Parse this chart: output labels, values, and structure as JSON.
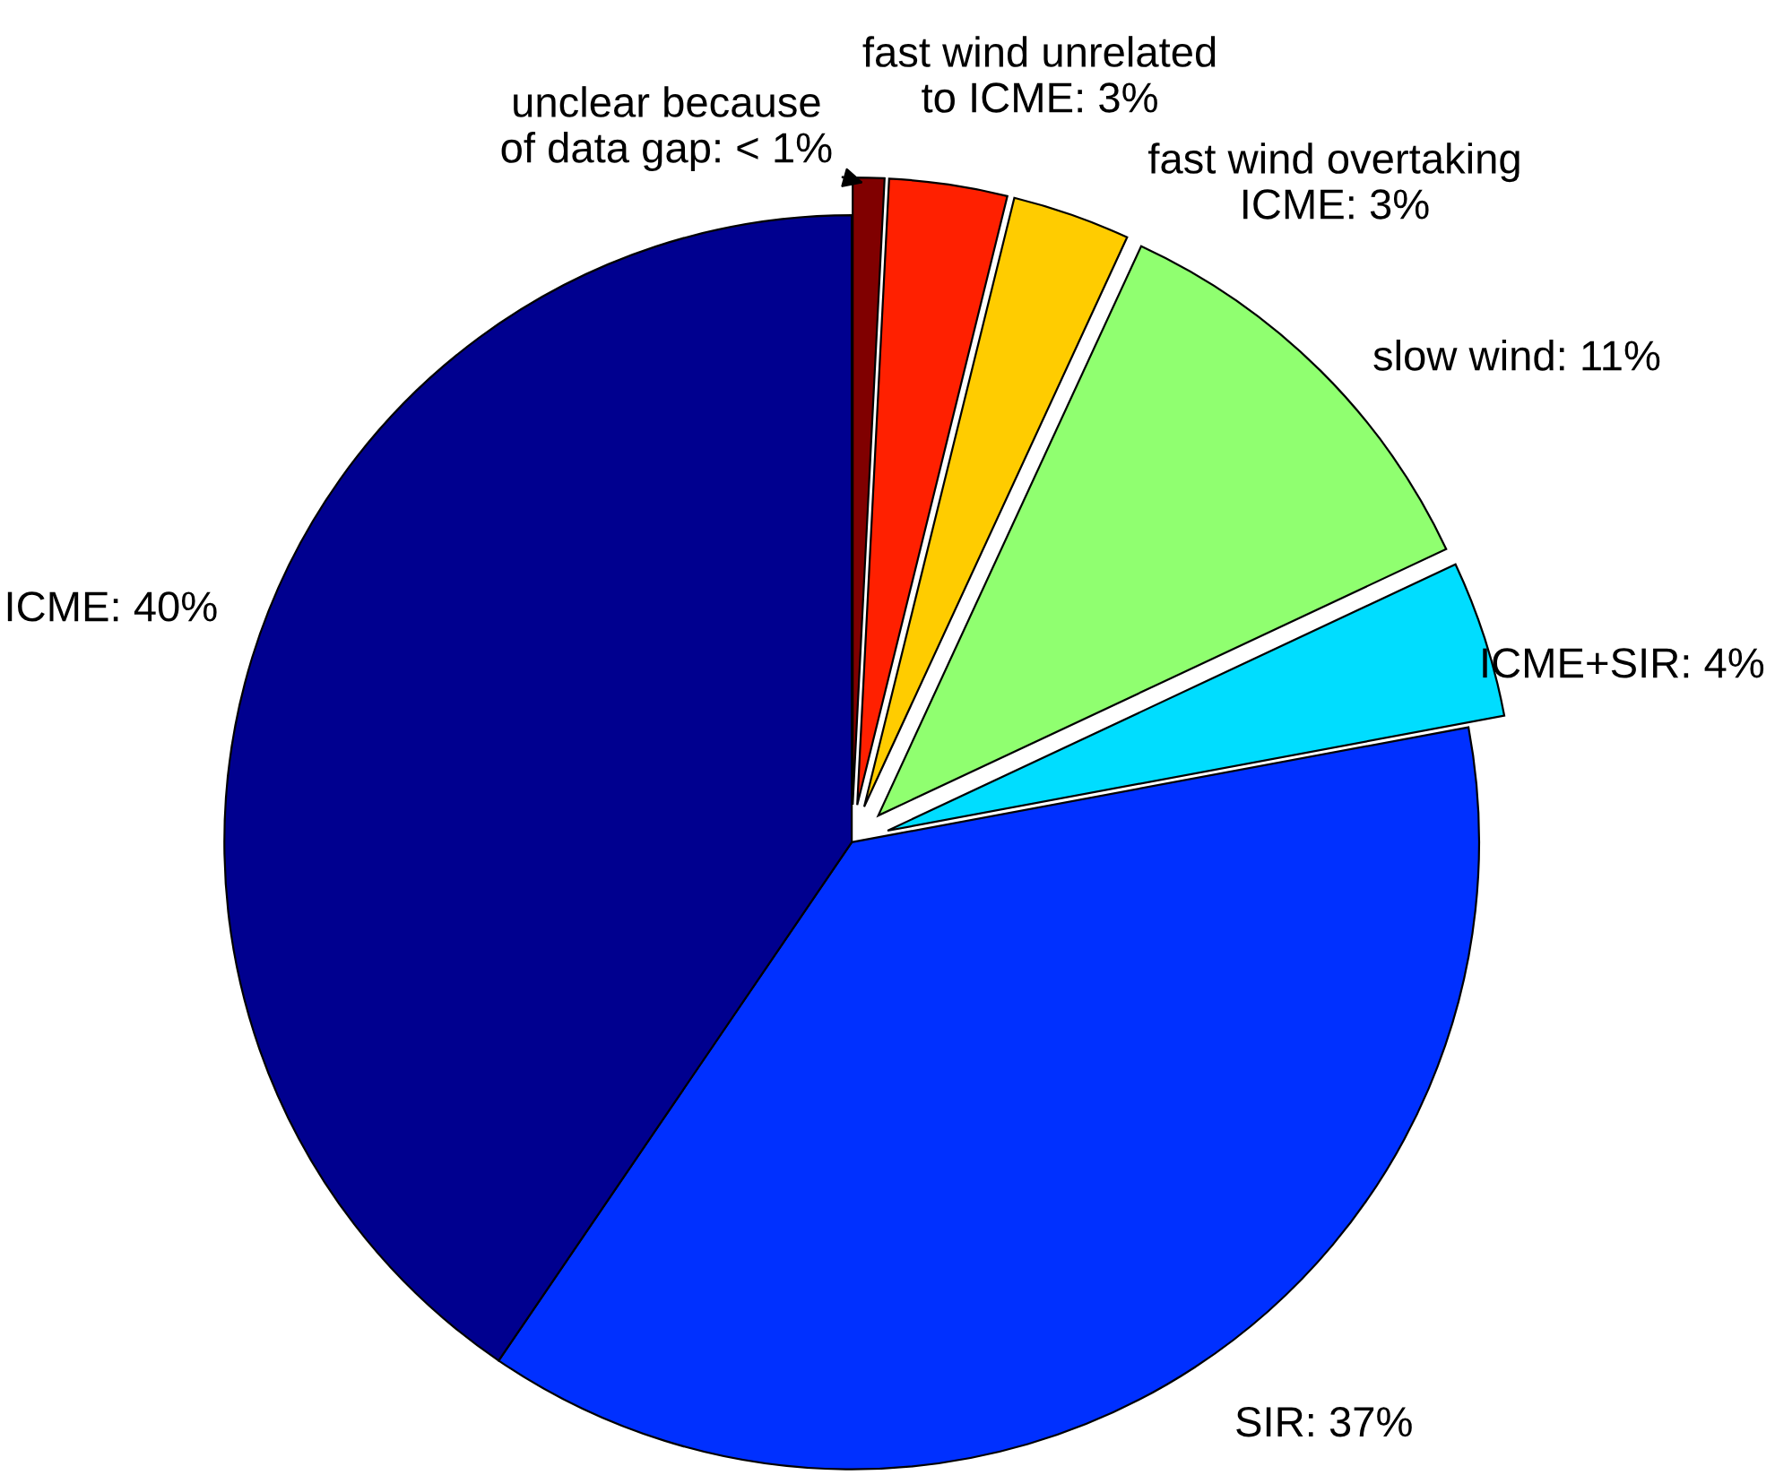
{
  "chart_data": {
    "type": "pie",
    "categories": [
      "unclear because\nof data gap",
      "fast wind unrelated\nto ICME",
      "fast wind overtaking\nICME",
      "slow wind",
      "ICME+SIR",
      "SIR",
      "ICME"
    ],
    "values": [
      0.8,
      3,
      3,
      11,
      4,
      37,
      40
    ],
    "value_labels": [
      "< 1%",
      "3%",
      "3%",
      "11%",
      "4%",
      "37%",
      "40%"
    ],
    "colors": [
      "#800000",
      "#ff2000",
      "#ffcc00",
      "#90ff70",
      "#00ddff",
      "#0030ff",
      "#00008f"
    ]
  }
}
